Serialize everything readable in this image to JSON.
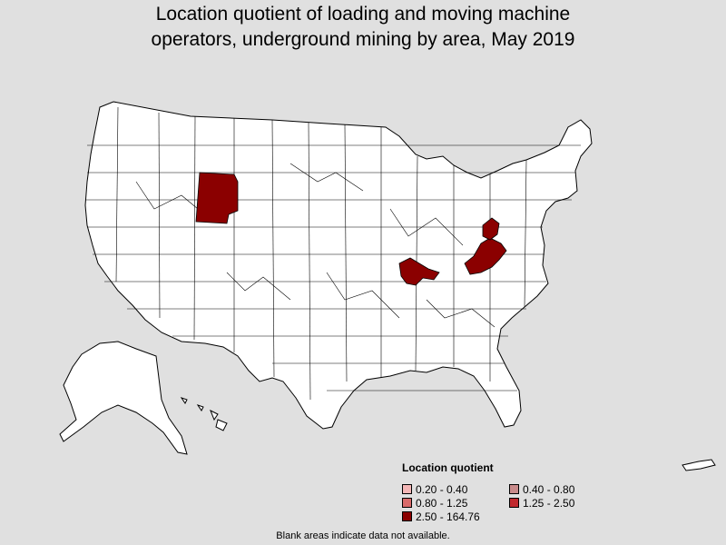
{
  "title": {
    "line1": "Location quotient of loading and moving machine",
    "line2": "operators, underground mining by area, May 2019"
  },
  "legend": {
    "title": "Location quotient",
    "items": [
      {
        "label": "0.20 - 0.40",
        "color": "#f4b6b6"
      },
      {
        "label": "0.40 - 0.80",
        "color": "#c98b8b"
      },
      {
        "label": "0.80 - 1.25",
        "color": "#d96a6a"
      },
      {
        "label": "1.25 - 2.50",
        "color": "#c0282d"
      },
      {
        "label": "2.50 - 164.76",
        "color": "#8b0000"
      }
    ]
  },
  "footnote": "Blank areas indicate data not available.",
  "colors": {
    "background": "#e0e0e0",
    "land": "#ffffff",
    "border": "#000000",
    "highlight": "#8b0000"
  },
  "highlighted_areas": [
    "southwest-wyoming",
    "western-kentucky",
    "eastern-kentucky-west-virginia",
    "southwest-pennsylvania"
  ]
}
